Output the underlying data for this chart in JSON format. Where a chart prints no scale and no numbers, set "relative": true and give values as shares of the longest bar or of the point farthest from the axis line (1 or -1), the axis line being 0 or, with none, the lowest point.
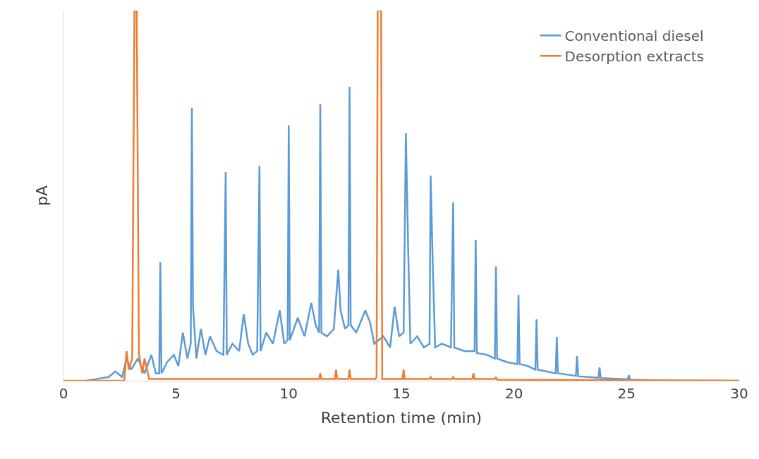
{
  "chart_data": {
    "type": "line",
    "relative": true,
    "xlabel": "Retention time (min)",
    "ylabel": "pA",
    "xlim": [
      0,
      30
    ],
    "xticks": [
      0,
      5,
      10,
      15,
      20,
      25,
      30
    ],
    "legend": "top right",
    "marker": "none",
    "line_style": "solid",
    "series": [
      {
        "name": "Conventional diesel",
        "color": "#5b9bd5",
        "x": [
          1.0,
          1.5,
          2.0,
          2.3,
          2.6,
          2.8,
          3.0,
          3.3,
          3.6,
          3.9,
          4.1,
          4.25,
          4.3,
          4.35,
          4.6,
          4.9,
          5.1,
          5.3,
          5.5,
          5.65,
          5.7,
          5.75,
          5.9,
          6.1,
          6.3,
          6.5,
          6.8,
          7.1,
          7.2,
          7.25,
          7.5,
          7.8,
          8.0,
          8.2,
          8.4,
          8.6,
          8.7,
          8.75,
          9.0,
          9.3,
          9.6,
          9.8,
          9.95,
          10.0,
          10.05,
          10.4,
          10.7,
          11.0,
          11.2,
          11.35,
          11.4,
          11.45,
          11.7,
          12.0,
          12.2,
          12.3,
          12.5,
          12.65,
          12.7,
          12.75,
          13.0,
          13.4,
          13.6,
          13.8,
          14.2,
          14.5,
          14.7,
          14.9,
          15.1,
          15.2,
          15.3,
          15.4,
          15.7,
          16.0,
          16.25,
          16.3,
          16.4,
          16.5,
          16.8,
          17.2,
          17.3,
          17.35,
          17.8,
          18.25,
          18.3,
          18.35,
          18.8,
          19.15,
          19.2,
          19.25,
          19.7,
          20.15,
          20.2,
          20.25,
          20.6,
          20.95,
          21.0,
          21.05,
          21.85,
          21.9,
          21.95,
          22.75,
          22.8,
          22.85,
          23.75,
          23.8,
          23.85,
          25.05,
          25.1,
          25.15,
          27,
          30
        ],
        "values": [
          0,
          0.005,
          0.01,
          0.025,
          0.01,
          0.06,
          0.03,
          0.06,
          0.02,
          0.07,
          0.02,
          0.02,
          0.32,
          0.02,
          0.05,
          0.07,
          0.04,
          0.13,
          0.06,
          0.1,
          0.737,
          0.2,
          0.06,
          0.14,
          0.07,
          0.12,
          0.08,
          0.07,
          0.564,
          0.07,
          0.1,
          0.08,
          0.18,
          0.1,
          0.07,
          0.08,
          0.581,
          0.08,
          0.13,
          0.1,
          0.19,
          0.1,
          0.11,
          0.69,
          0.11,
          0.17,
          0.12,
          0.21,
          0.15,
          0.13,
          0.747,
          0.13,
          0.12,
          0.14,
          0.3,
          0.19,
          0.14,
          0.15,
          0.794,
          0.15,
          0.13,
          0.19,
          0.16,
          0.1,
          0.12,
          0.09,
          0.2,
          0.12,
          0.13,
          0.669,
          0.36,
          0.1,
          0.12,
          0.09,
          0.1,
          0.554,
          0.3,
          0.09,
          0.1,
          0.09,
          0.482,
          0.09,
          0.08,
          0.08,
          0.381,
          0.075,
          0.07,
          0.06,
          0.309,
          0.06,
          0.05,
          0.045,
          0.232,
          0.045,
          0.04,
          0.03,
          0.166,
          0.03,
          0.02,
          0.118,
          0.02,
          0.013,
          0.067,
          0.012,
          0.008,
          0.036,
          0.007,
          0.004,
          0.015,
          0.003,
          0,
          0
        ]
      },
      {
        "name": "Desorption extracts",
        "color": "#ed7d31",
        "x": [
          0,
          2.7,
          2.8,
          2.9,
          3.05,
          3.15,
          3.25,
          3.35,
          3.5,
          3.6,
          3.8,
          11.35,
          11.4,
          11.45,
          12.05,
          12.1,
          12.15,
          12.65,
          12.7,
          12.75,
          13.85,
          13.9,
          13.95,
          14.1,
          14.15,
          15.05,
          15.1,
          15.15,
          16.25,
          16.3,
          16.35,
          17.25,
          17.3,
          17.35,
          18.15,
          18.2,
          18.25,
          19.15,
          19.2,
          19.25,
          30
        ],
        "values": [
          0,
          0,
          0.08,
          0.03,
          0.06,
          1,
          1,
          0.07,
          0.02,
          0.06,
          0.005,
          0.005,
          0.02,
          0.005,
          0.005,
          0.03,
          0.005,
          0.005,
          0.03,
          0.005,
          0.005,
          0.01,
          1,
          1,
          0.005,
          0.005,
          0.03,
          0.005,
          0.005,
          0.01,
          0.005,
          0.005,
          0.01,
          0.005,
          0.005,
          0.02,
          0.005,
          0.005,
          0.01,
          0.003,
          0
        ]
      }
    ]
  }
}
